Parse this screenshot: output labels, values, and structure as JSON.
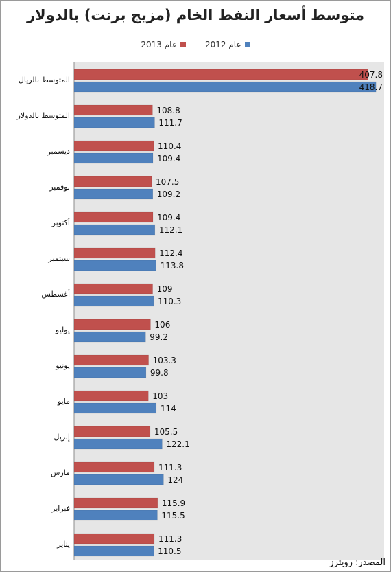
{
  "chart_data": {
    "type": "bar",
    "orientation": "horizontal",
    "title": "متوسط أسعار النفط الخام (مزيج برنت) بالدولار",
    "categories": [
      "المتوسط بالريال",
      "المتوسط بالدولار",
      "ديسمبر",
      "نوفمبر",
      "أكتوبر",
      "سبتمبر",
      "أغسطس",
      "يوليو",
      "يونيو",
      "مايو",
      "إبريل",
      "مارس",
      "فبراير",
      "يناير"
    ],
    "series": [
      {
        "name": "عام 2013",
        "color": "#c0504d",
        "values": [
          407.8,
          108.8,
          110.4,
          107.5,
          109.4,
          112.4,
          109,
          106,
          103.3,
          103,
          105.5,
          111.3,
          115.9,
          111.3
        ],
        "labels": [
          "407.8",
          "108.8",
          "110.4",
          "107.5",
          "109.4",
          "112.4",
          "109",
          "106",
          "103.3",
          "103",
          "105.5",
          "111.3",
          "115.9",
          "111.3"
        ]
      },
      {
        "name": "عام 2012",
        "color": "#4f81bd",
        "values": [
          418.7,
          111.7,
          109.4,
          109.2,
          112.1,
          113.8,
          110.3,
          99.2,
          99.8,
          114,
          122.1,
          124,
          115.5,
          110.5
        ],
        "labels": [
          "418.7",
          "111.7",
          "109.4",
          "109.2",
          "112.1",
          "113.8",
          "110.3",
          "99.2",
          "99.8",
          "114",
          "122.1",
          "124",
          "115.5",
          "110.5"
        ]
      }
    ],
    "xlim": [
      0,
      430
    ],
    "grid": false,
    "legend_position": "top-center",
    "source": "المصدر: رويترز"
  }
}
